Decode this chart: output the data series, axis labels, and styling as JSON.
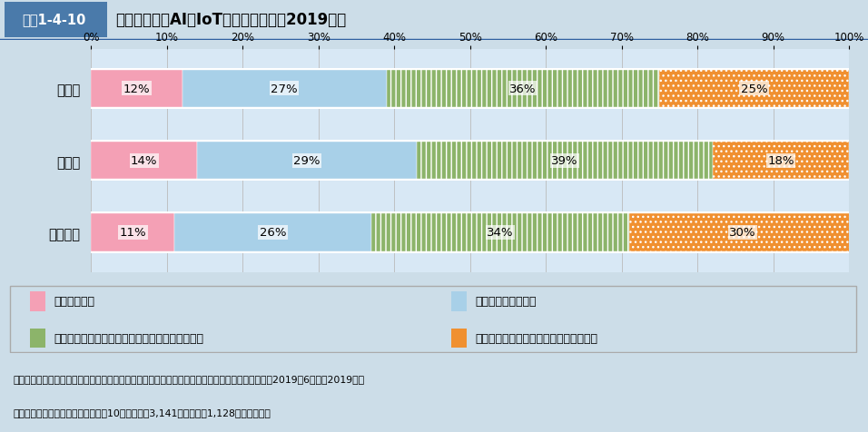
{
  "title_box_label": "図表1-4-10",
  "title_main": "企業におけるAI、IoT等の活用状況（2019年）",
  "categories": [
    "全産業",
    "製造業",
    "非製造業"
  ],
  "series": [
    {
      "label": "活用している",
      "values": [
        12,
        14,
        11
      ],
      "color": "#f4a0b5",
      "hatch": null
    },
    {
      "label": "活用を検討している",
      "values": [
        27,
        29,
        26
      ],
      "color": "#a8d0e8",
      "hatch": null
    },
    {
      "label": "活用予定はないが、社内的な関心が高まっている",
      "values": [
        36,
        39,
        34
      ],
      "color": "#8cb46a",
      "hatch": "|||"
    },
    {
      "label": "活用予定はなく、関心も高まっていない",
      "values": [
        25,
        18,
        30
      ],
      "color": "#f09030",
      "hatch": "..."
    }
  ],
  "xticks": [
    0,
    10,
    20,
    30,
    40,
    50,
    60,
    70,
    80,
    90,
    100
  ],
  "xticklabels": [
    "0%",
    "10%",
    "20%",
    "30%",
    "40%",
    "50%",
    "60%",
    "70%",
    "80%",
    "90%",
    "100%"
  ],
  "chart_bg": "#d8e8f5",
  "header_bg": "#4a7aaa",
  "header_label_bg": "#5580a8",
  "legend_bg": "#ffffff",
  "legend_border": "#aaaaaa",
  "footnote_bg": "#d8e8f5",
  "outer_bg": "#ccdde8",
  "footnote_line1": "資料：株式会社日本政策投資銀行「【特別アンケート】企業行動に関する意識調査結果（大企業）2019年6月」（2019年）",
  "footnote_line2": "（注）　調査対象は大企業（資本金10億円以上）3,141社であり、1,128社より回答。"
}
